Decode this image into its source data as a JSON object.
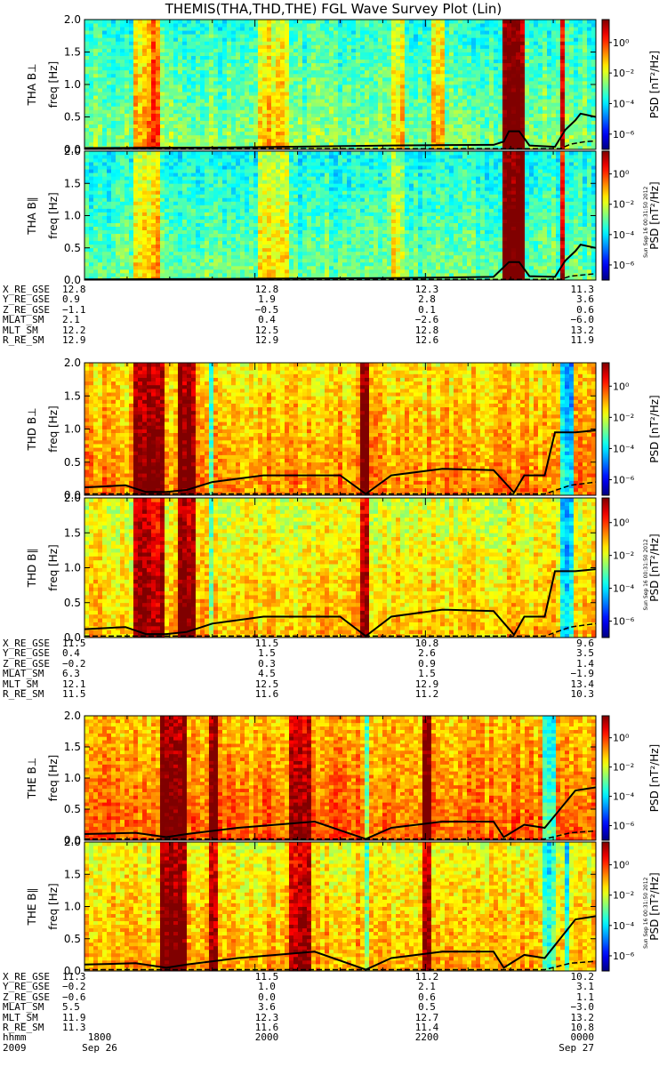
{
  "title": "THEMIS(THA,THD,THE) FGL Wave Survey Plot (Lin)",
  "footer_date": "2009",
  "timestamp": "Sun Sep 16 00:31:50 2012",
  "chart_data": {
    "type": "heatmap",
    "x_ticks": [
      "1800",
      "2000",
      "2200",
      "0000"
    ],
    "x_tick_dates": [
      "Sep 26",
      "",
      "",
      "Sep 27"
    ],
    "x_row_label": "hhmm",
    "ylabel": "freq [Hz]",
    "ylim": [
      0,
      2.0
    ],
    "y_ticks": [
      "0.0",
      "0.5",
      "1.0",
      "1.5",
      "2.0"
    ],
    "colorbar_label": "PSD [nT²/Hz]",
    "colorbar_ticks": [
      "10⁰",
      "10⁻²",
      "10⁻⁴",
      "10⁻⁶"
    ],
    "colorbar_range_log10": [
      -7,
      1.5
    ],
    "panels": [
      {
        "probe": "THA",
        "component": "B⊥",
        "label": "THA B⊥",
        "background_log10": -3.5,
        "bands": [
          [
            0.1,
            0.13,
            -1.5
          ],
          [
            0.13,
            0.15,
            -0.5
          ],
          [
            0.34,
            0.4,
            -2
          ],
          [
            0.6,
            0.63,
            -2.2
          ],
          [
            0.68,
            0.7,
            -2
          ],
          [
            0.82,
            0.86,
            1.3
          ],
          [
            0.93,
            0.94,
            0.5
          ]
        ],
        "fce_curve": [
          [
            0,
            0.02
          ],
          [
            0.3,
            0.03
          ],
          [
            0.6,
            0.06
          ],
          [
            0.8,
            0.07
          ],
          [
            0.82,
            0.12
          ],
          [
            0.83,
            0.28
          ],
          [
            0.85,
            0.28
          ],
          [
            0.87,
            0.06
          ],
          [
            0.92,
            0.04
          ],
          [
            0.94,
            0.3
          ],
          [
            0.96,
            0.45
          ],
          [
            0.97,
            0.55
          ],
          [
            1.0,
            0.5
          ]
        ],
        "dash_curve": [
          [
            0,
            0.01
          ],
          [
            0.93,
            0.01
          ],
          [
            0.95,
            0.08
          ],
          [
            0.98,
            0.12
          ],
          [
            1.0,
            0.13
          ]
        ]
      },
      {
        "probe": "THA",
        "component": "B∥",
        "label": "THA B∥",
        "background_log10": -3.8,
        "bands": [
          [
            0.1,
            0.13,
            -2.2
          ],
          [
            0.13,
            0.15,
            -1.5
          ],
          [
            0.34,
            0.4,
            -2.5
          ],
          [
            0.6,
            0.63,
            -2.5
          ],
          [
            0.82,
            0.86,
            1.3
          ],
          [
            0.93,
            0.94,
            0.5
          ]
        ],
        "fce_curve": [
          [
            0,
            0.01
          ],
          [
            0.6,
            0.03
          ],
          [
            0.8,
            0.05
          ],
          [
            0.83,
            0.28
          ],
          [
            0.85,
            0.28
          ],
          [
            0.87,
            0.06
          ],
          [
            0.92,
            0.05
          ],
          [
            0.94,
            0.3
          ],
          [
            0.96,
            0.45
          ],
          [
            0.97,
            0.55
          ],
          [
            1.0,
            0.5
          ]
        ],
        "dash_curve": [
          [
            0,
            0.01
          ],
          [
            0.93,
            0.01
          ],
          [
            0.95,
            0.06
          ],
          [
            1.0,
            0.1
          ]
        ]
      },
      {
        "probe": "THD",
        "component": "B⊥",
        "label": "THD B⊥",
        "background_log10": -1.5,
        "bands": [
          [
            0.1,
            0.16,
            0.8
          ],
          [
            0.18,
            0.22,
            1.2
          ],
          [
            0.24,
            0.25,
            -3.5
          ],
          [
            0.54,
            0.56,
            1.2
          ],
          [
            0.93,
            0.96,
            -4.5
          ]
        ],
        "fce_curve": [
          [
            0,
            0.12
          ],
          [
            0.08,
            0.15
          ],
          [
            0.12,
            0.05
          ],
          [
            0.16,
            0.05
          ],
          [
            0.2,
            0.08
          ],
          [
            0.25,
            0.2
          ],
          [
            0.35,
            0.3
          ],
          [
            0.5,
            0.3
          ],
          [
            0.55,
            0.02
          ],
          [
            0.6,
            0.3
          ],
          [
            0.7,
            0.4
          ],
          [
            0.8,
            0.38
          ],
          [
            0.84,
            0.04
          ],
          [
            0.86,
            0.3
          ],
          [
            0.9,
            0.3
          ],
          [
            0.92,
            0.95
          ],
          [
            0.96,
            0.95
          ],
          [
            1.0,
            0.98
          ]
        ],
        "dash_curve": [
          [
            0,
            0.02
          ],
          [
            0.9,
            0.02
          ],
          [
            0.95,
            0.15
          ],
          [
            1.0,
            0.2
          ]
        ]
      },
      {
        "probe": "THD",
        "component": "B∥",
        "label": "THD B∥",
        "background_log10": -2.0,
        "bands": [
          [
            0.1,
            0.16,
            0.5
          ],
          [
            0.18,
            0.22,
            1.0
          ],
          [
            0.24,
            0.25,
            -3.5
          ],
          [
            0.54,
            0.56,
            0.5
          ],
          [
            0.93,
            0.96,
            -4.5
          ]
        ],
        "fce_curve": [
          [
            0,
            0.12
          ],
          [
            0.08,
            0.15
          ],
          [
            0.12,
            0.05
          ],
          [
            0.16,
            0.05
          ],
          [
            0.2,
            0.08
          ],
          [
            0.25,
            0.2
          ],
          [
            0.35,
            0.3
          ],
          [
            0.5,
            0.3
          ],
          [
            0.55,
            0.02
          ],
          [
            0.6,
            0.3
          ],
          [
            0.7,
            0.4
          ],
          [
            0.8,
            0.38
          ],
          [
            0.84,
            0.04
          ],
          [
            0.86,
            0.3
          ],
          [
            0.9,
            0.3
          ],
          [
            0.92,
            0.95
          ],
          [
            0.96,
            0.95
          ],
          [
            1.0,
            0.98
          ]
        ],
        "dash_curve": [
          [
            0,
            0.02
          ],
          [
            0.9,
            0.02
          ],
          [
            0.95,
            0.15
          ],
          [
            1.0,
            0.2
          ]
        ]
      },
      {
        "probe": "THE",
        "component": "B⊥",
        "label": "THE B⊥",
        "background_log10": -1.2,
        "bands": [
          [
            0.15,
            0.2,
            1.2
          ],
          [
            0.24,
            0.26,
            1.0
          ],
          [
            0.4,
            0.44,
            0.8
          ],
          [
            0.55,
            0.56,
            -3.5
          ],
          [
            0.66,
            0.68,
            1.2
          ],
          [
            0.9,
            0.92,
            -3.8
          ]
        ],
        "fce_curve": [
          [
            0,
            0.1
          ],
          [
            0.1,
            0.12
          ],
          [
            0.16,
            0.05
          ],
          [
            0.2,
            0.1
          ],
          [
            0.3,
            0.2
          ],
          [
            0.45,
            0.3
          ],
          [
            0.55,
            0.02
          ],
          [
            0.6,
            0.2
          ],
          [
            0.7,
            0.3
          ],
          [
            0.8,
            0.3
          ],
          [
            0.82,
            0.05
          ],
          [
            0.86,
            0.25
          ],
          [
            0.9,
            0.2
          ],
          [
            0.93,
            0.5
          ],
          [
            0.96,
            0.8
          ],
          [
            1.0,
            0.85
          ]
        ],
        "dash_curve": [
          [
            0,
            0.02
          ],
          [
            0.9,
            0.02
          ],
          [
            0.95,
            0.12
          ],
          [
            1.0,
            0.15
          ]
        ]
      },
      {
        "probe": "THE",
        "component": "B∥",
        "label": "THE B∥",
        "background_log10": -1.8,
        "bands": [
          [
            0.15,
            0.2,
            1.0
          ],
          [
            0.24,
            0.26,
            0.8
          ],
          [
            0.4,
            0.44,
            0.5
          ],
          [
            0.55,
            0.56,
            -3.5
          ],
          [
            0.66,
            0.68,
            1.0
          ],
          [
            0.9,
            0.92,
            -3.8
          ],
          [
            0.94,
            0.95,
            -4.2
          ]
        ],
        "fce_curve": [
          [
            0,
            0.1
          ],
          [
            0.1,
            0.12
          ],
          [
            0.16,
            0.05
          ],
          [
            0.2,
            0.1
          ],
          [
            0.3,
            0.2
          ],
          [
            0.45,
            0.3
          ],
          [
            0.55,
            0.02
          ],
          [
            0.6,
            0.2
          ],
          [
            0.7,
            0.3
          ],
          [
            0.8,
            0.3
          ],
          [
            0.82,
            0.05
          ],
          [
            0.86,
            0.25
          ],
          [
            0.9,
            0.2
          ],
          [
            0.93,
            0.5
          ],
          [
            0.96,
            0.8
          ],
          [
            1.0,
            0.85
          ]
        ],
        "dash_curve": [
          [
            0,
            0.02
          ],
          [
            0.9,
            0.02
          ],
          [
            0.95,
            0.12
          ],
          [
            1.0,
            0.15
          ]
        ]
      }
    ],
    "ephemeris": [
      {
        "probe": "THA",
        "labels": [
          "X_RE_GSE",
          "Y_RE_GSE",
          "Z_RE_GSE",
          "MLAT_SM",
          "MLT_SM",
          "R_RE_SM"
        ],
        "columns": [
          [
            "12.8",
            "0.9",
            "−1.1",
            "2.1",
            "12.2",
            "12.9"
          ],
          [
            "12.8",
            "1.9",
            "−0.5",
            "0.4",
            "12.5",
            "12.9"
          ],
          [
            "12.3",
            "2.8",
            "0.1",
            "−2.6",
            "12.8",
            "12.6"
          ],
          [
            "11.3",
            "3.6",
            "0.6",
            "−6.0",
            "13.2",
            "11.9"
          ]
        ]
      },
      {
        "probe": "THD",
        "labels": [
          "X_RE_GSE",
          "Y_RE_GSE",
          "Z_RE_GSE",
          "MLAT_SM",
          "MLT_SM",
          "R_RE_SM"
        ],
        "columns": [
          [
            "11.5",
            "0.4",
            "−0.2",
            "6.3",
            "12.1",
            "11.5"
          ],
          [
            "11.5",
            "1.5",
            "0.3",
            "4.5",
            "12.5",
            "11.6"
          ],
          [
            "10.8",
            "2.6",
            "0.9",
            "1.5",
            "12.9",
            "11.2"
          ],
          [
            "9.6",
            "3.5",
            "1.4",
            "−1.9",
            "13.4",
            "10.3"
          ]
        ]
      },
      {
        "probe": "THE",
        "labels": [
          "X_RE_GSE",
          "Y_RE_GSE",
          "Z_RE_GSE",
          "MLAT_SM",
          "MLT_SM",
          "R_RE_SM"
        ],
        "columns": [
          [
            "11.3",
            "−0.2",
            "−0.6",
            "5.5",
            "11.9",
            "11.3"
          ],
          [
            "11.5",
            "1.0",
            "0.0",
            "3.6",
            "12.3",
            "11.6"
          ],
          [
            "11.2",
            "2.1",
            "0.6",
            "0.5",
            "12.7",
            "11.4"
          ],
          [
            "10.2",
            "3.1",
            "1.1",
            "−3.0",
            "13.2",
            "10.8"
          ]
        ]
      }
    ]
  }
}
